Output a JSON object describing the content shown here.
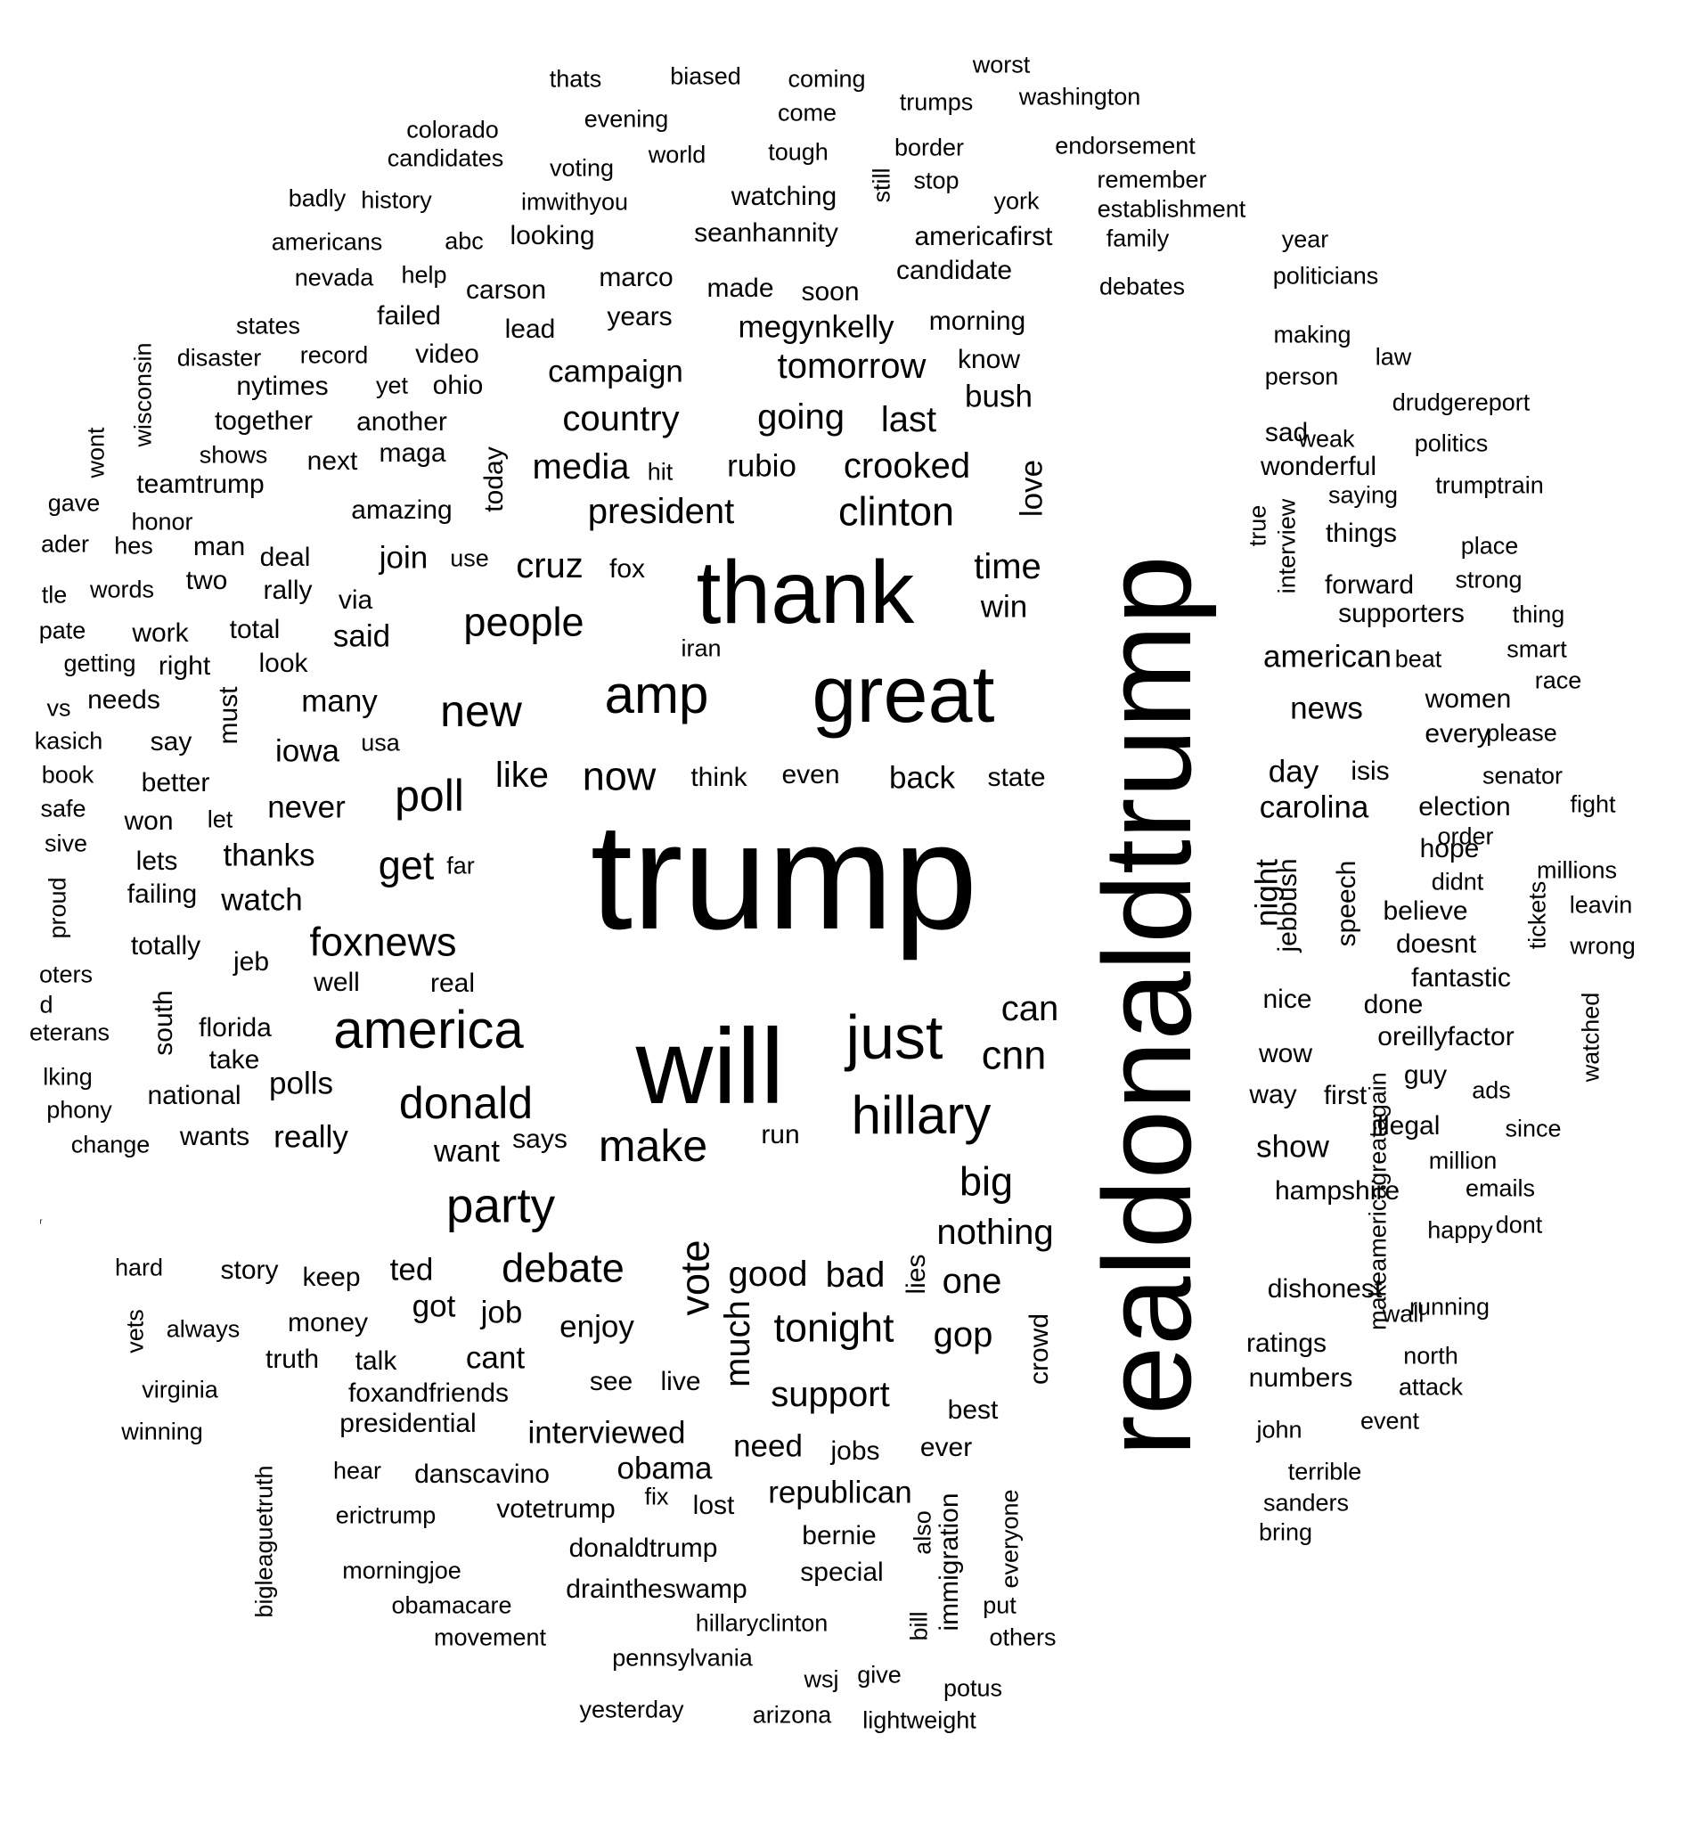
{
  "words": [
    "thats",
    "biased",
    "coming",
    "worst",
    "trumps",
    "washington",
    "evening",
    "come",
    "colorado",
    "candidates",
    "world",
    "tough",
    "border",
    "endorsement",
    "voting",
    "stop",
    "remember",
    "badly",
    "history",
    "imwithyou",
    "watching",
    "still",
    "york",
    "establishment",
    "americans",
    "abc",
    "looking",
    "seanhannity",
    "americafirst",
    "family",
    "year",
    "nevada",
    "help",
    "carson",
    "marco",
    "made",
    "soon",
    "candidate",
    "debates",
    "politicians",
    "states",
    "failed",
    "lead",
    "years",
    "megynkelly",
    "morning",
    "wisconsin",
    "disaster",
    "record",
    "video",
    "making",
    "law",
    "campaign",
    "tomorrow",
    "know",
    "person",
    "nytimes",
    "yet",
    "ohio",
    "bush",
    "drudgereport",
    "together",
    "another",
    "country",
    "going",
    "last",
    "sad",
    "weak",
    "politics",
    "wont",
    "shows",
    "maga",
    "next",
    "today",
    "media",
    "hit",
    "rubio",
    "crooked",
    "wonderful",
    "trumptrain",
    "teamtrump",
    "gave",
    "saying",
    "love",
    "true",
    "interview",
    "amazing",
    "president",
    "clinton",
    "honor",
    "things",
    "hes",
    "man",
    "ader",
    "deal",
    "join",
    "use",
    "cruz",
    "fox",
    "place",
    "time",
    "thank",
    "strong",
    "rally",
    "two",
    "words",
    "tle",
    "via",
    "forward",
    "win",
    "supporters",
    "thing",
    "work",
    "pate",
    "total",
    "said",
    "people",
    "iran",
    "getting",
    "right",
    "look",
    "american",
    "beat",
    "smart",
    "race",
    "needs",
    "vs",
    "many",
    "new",
    "amp",
    "great",
    "news",
    "women",
    "must",
    "kasich",
    "say",
    "usa",
    "iowa",
    "every",
    "please",
    "book",
    "better",
    "think",
    "even",
    "back",
    "state",
    "day",
    "isis",
    "senator",
    "safe",
    "poll",
    "like",
    "now",
    "never",
    "carolina",
    "election",
    "fight",
    "won",
    "let",
    "sive",
    "order",
    "trump",
    "realdonaldtrump",
    "lets",
    "thanks",
    "get",
    "far",
    "hope",
    "night",
    "jebbush",
    "speech",
    "millions",
    "didnt",
    "failing",
    "proud",
    "watch",
    "believe",
    "leavin",
    "tickets",
    "totally",
    "foxnews",
    "doesnt",
    "wrong",
    "jeb",
    "oters",
    "well",
    "real",
    "fantastic",
    "d",
    "can",
    "nice",
    "done",
    "south",
    "florida",
    "america",
    "just",
    "eterans",
    "oreillyfactor",
    "watched",
    "take",
    "will",
    "cnn",
    "wow",
    "lking",
    "guy",
    "polls",
    "phony",
    "national",
    "donald",
    "hillary",
    "way",
    "first",
    "ads",
    "change",
    "wants",
    "really",
    "says",
    "run",
    "illegal",
    "since",
    "want",
    "make",
    "show",
    "million",
    "big",
    "hampshire",
    "makeamericagreatagain",
    "emails",
    "party",
    "dont",
    "nothing",
    "happy",
    "hard",
    "story",
    "keep",
    "ted",
    "debate",
    "lies",
    "good",
    "bad",
    "dishonest",
    "vote",
    "one",
    "wall",
    "running",
    "vets",
    "always",
    "money",
    "got",
    "job",
    "enjoy",
    "tonight",
    "ratings",
    "much",
    "gop",
    "truth",
    "talk",
    "cant",
    "crowd",
    "north",
    "virginia",
    "see",
    "live",
    "numbers",
    "attack",
    "foxandfriends",
    "support",
    "best",
    "winning",
    "presidential",
    "interviewed",
    "john",
    "event",
    "need",
    "jobs",
    "ever",
    "bigleaguetruth",
    "hear",
    "obama",
    "danscavino",
    "everyone",
    "terrible",
    "republican",
    "erictrump",
    "fix",
    "lost",
    "votetrump",
    "sanders",
    "also",
    "bring",
    "donaldtrump",
    "bernie",
    "immigration",
    "morningjoe",
    "special",
    "draintheswamp",
    "put",
    "bill",
    "obamacare",
    "hillaryclinton",
    "movement",
    "others",
    "pennsylvania",
    "give",
    "potus",
    "wsj",
    "yesterday",
    "arizona",
    "lightweight",
    "r"
  ]
}
